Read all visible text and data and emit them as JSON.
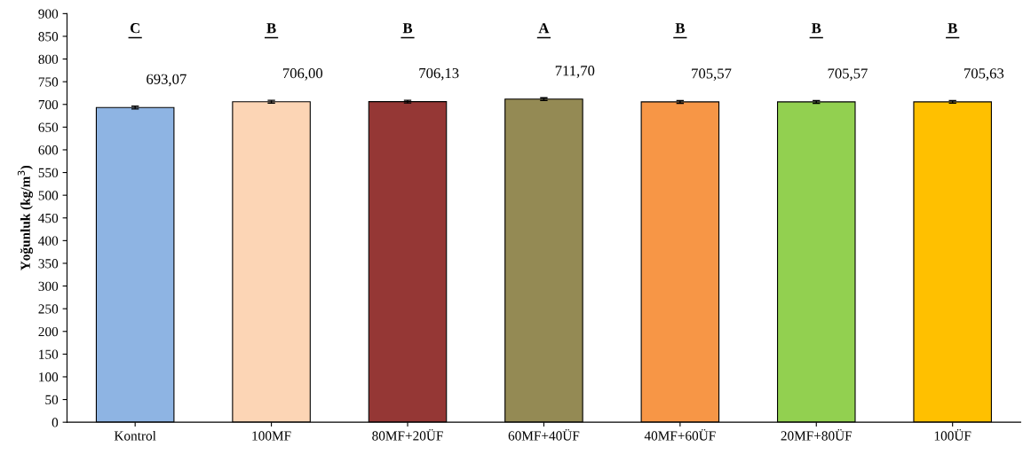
{
  "chart_data": {
    "type": "bar",
    "ylabel": "Yoğunluk (kg/m$^{3}$)",
    "categories": [
      "Kontrol",
      "100MF",
      "80MF+20ÜF",
      "60MF+40ÜF",
      "40MF+60ÜF",
      "20MF+80ÜF",
      "100ÜF"
    ],
    "values": [
      693.07,
      706.0,
      706.13,
      711.7,
      705.57,
      705.57,
      705.63
    ],
    "value_labels": [
      "693,07",
      "706,00",
      "706,13",
      "711,70",
      "705,57",
      "705,57",
      "705,63"
    ],
    "errors": [
      3,
      3,
      3,
      3,
      3,
      3,
      3
    ],
    "colors": [
      "#8eb4e3",
      "#fcd5b5",
      "#953735",
      "#948a54",
      "#f79646",
      "#92d050",
      "#ffc000"
    ],
    "ylim": [
      0,
      900
    ],
    "yticks": [
      0,
      50,
      100,
      150,
      200,
      250,
      300,
      350,
      400,
      450,
      500,
      550,
      600,
      650,
      700,
      750,
      800,
      850,
      900
    ],
    "grid": false,
    "annotations": [
      "C",
      "B",
      "B",
      "A",
      "B",
      "B",
      "B"
    ]
  }
}
